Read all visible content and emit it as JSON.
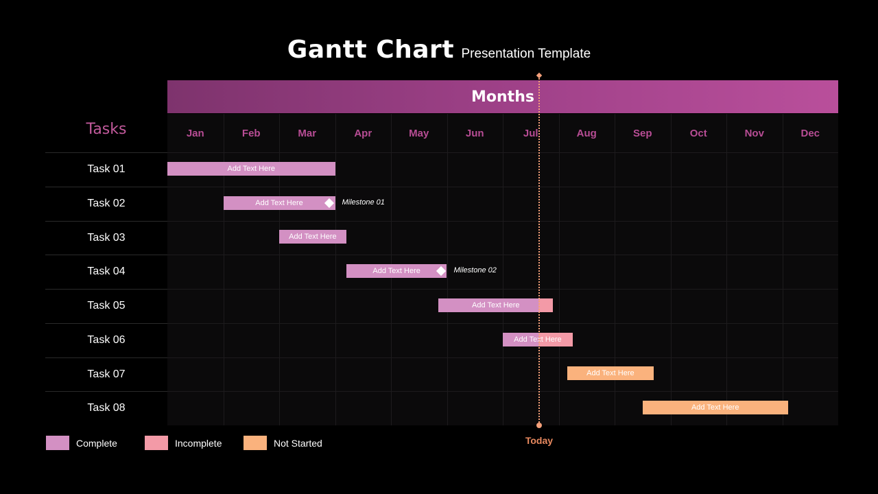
{
  "title": {
    "main": "Gantt Chart",
    "sub": "Presentation Template"
  },
  "header": {
    "months_label": "Months",
    "tasks_label": "Tasks"
  },
  "today_label": "Today",
  "colors": {
    "complete": "#d390c3",
    "incomplete": "#f39aa7",
    "not_started": "#fab27d",
    "accent": "#b84d95",
    "today": "#f4a07a"
  },
  "legend": [
    {
      "label": "Complete",
      "status": "complete"
    },
    {
      "label": "Incomplete",
      "status": "incomplete"
    },
    {
      "label": "Not Started",
      "status": "not_started"
    }
  ],
  "chart_data": {
    "type": "gantt",
    "months": [
      "Jan",
      "Feb",
      "Mar",
      "Apr",
      "May",
      "Jun",
      "Jul",
      "Aug",
      "Sep",
      "Oct",
      "Nov",
      "Dec"
    ],
    "today": 6.65,
    "tasks": [
      {
        "name": "Task 01",
        "label": "Add Text Here",
        "start": 0.0,
        "end": 3.0,
        "status": "complete"
      },
      {
        "name": "Task 02",
        "label": "Add Text Here",
        "start": 1.0,
        "end": 3.0,
        "status": "complete",
        "milestone": {
          "label": "Milestone 01",
          "at": 2.9
        }
      },
      {
        "name": "Task 03",
        "label": "Add Text Here",
        "start": 2.0,
        "end": 3.2,
        "status": "complete"
      },
      {
        "name": "Task 04",
        "label": "Add Text Here",
        "start": 3.2,
        "end": 5.0,
        "status": "complete",
        "milestone": {
          "label": "Milestone 02",
          "at": 4.9
        }
      },
      {
        "name": "Task 05",
        "label": "Add Text Here",
        "start": 4.85,
        "end": 6.9,
        "status": "complete",
        "split": 6.65,
        "split_status": "incomplete"
      },
      {
        "name": "Task 06",
        "label": "Add Text Here",
        "start": 6.0,
        "end": 7.25,
        "status": "complete",
        "split": 6.65,
        "split_status": "incomplete"
      },
      {
        "name": "Task 07",
        "label": "Add Text Here",
        "start": 7.15,
        "end": 8.7,
        "status": "not_started"
      },
      {
        "name": "Task 08",
        "label": "Add Text Here",
        "start": 8.5,
        "end": 11.1,
        "status": "not_started"
      }
    ]
  }
}
